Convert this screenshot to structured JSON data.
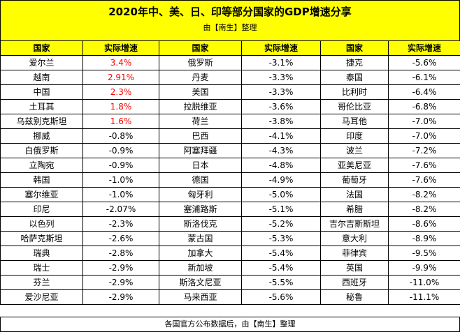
{
  "title": "2020年中、美、日、印等部分国家的GDP增速分享",
  "subtitle": "由【南生】整理",
  "footer": "各国官方公布数据后，由【南生】整理",
  "colors": {
    "header_bg": "#ffff00",
    "highlight_text": "#ff0000"
  },
  "headers": [
    "国家",
    "实际增速",
    "国家",
    "实际增速",
    "国家",
    "实际增速"
  ],
  "rows": [
    [
      {
        "c": "爱尔兰",
        "g": "3.4%",
        "hl": true
      },
      {
        "c": "俄罗斯",
        "g": "-3.1%"
      },
      {
        "c": "捷克",
        "g": "-5.6%"
      }
    ],
    [
      {
        "c": "越南",
        "g": "2.91%",
        "hl": true
      },
      {
        "c": "丹麦",
        "g": "-3.3%"
      },
      {
        "c": "泰国",
        "g": "-6.1%"
      }
    ],
    [
      {
        "c": "中国",
        "g": "2.3%",
        "hl": true
      },
      {
        "c": "美国",
        "g": "-3.3%"
      },
      {
        "c": "比利时",
        "g": "-6.4%"
      }
    ],
    [
      {
        "c": "土耳其",
        "g": "1.8%",
        "hl": true
      },
      {
        "c": "拉脱维亚",
        "g": "-3.6%"
      },
      {
        "c": "哥伦比亚",
        "g": "-6.8%"
      }
    ],
    [
      {
        "c": "乌兹别克斯坦",
        "g": "1.6%",
        "hl": true
      },
      {
        "c": "荷兰",
        "g": "-3.8%"
      },
      {
        "c": "马耳他",
        "g": "-7.0%"
      }
    ],
    [
      {
        "c": "挪威",
        "g": "-0.8%"
      },
      {
        "c": "巴西",
        "g": "-4.1%"
      },
      {
        "c": "印度",
        "g": "-7.0%"
      }
    ],
    [
      {
        "c": "白俄罗斯",
        "g": "-0.9%"
      },
      {
        "c": "阿塞拜疆",
        "g": "-4.3%"
      },
      {
        "c": "波兰",
        "g": "-7.2%"
      }
    ],
    [
      {
        "c": "立陶宛",
        "g": "-0.9%"
      },
      {
        "c": "日本",
        "g": "-4.8%"
      },
      {
        "c": "亚美尼亚",
        "g": "-7.6%"
      }
    ],
    [
      {
        "c": "韩国",
        "g": "-1.0%"
      },
      {
        "c": "德国",
        "g": "-4.9%"
      },
      {
        "c": "葡萄牙",
        "g": "-7.6%"
      }
    ],
    [
      {
        "c": "塞尔维亚",
        "g": "-1.0%"
      },
      {
        "c": "匈牙利",
        "g": "-5.0%"
      },
      {
        "c": "法国",
        "g": "-8.2%"
      }
    ],
    [
      {
        "c": "印尼",
        "g": "-2.07%"
      },
      {
        "c": "塞浦路斯",
        "g": "-5.1%"
      },
      {
        "c": "希腊",
        "g": "-8.2%"
      }
    ],
    [
      {
        "c": "以色列",
        "g": "-2.3%"
      },
      {
        "c": "斯洛伐克",
        "g": "-5.2%"
      },
      {
        "c": "吉尔吉斯斯坦",
        "g": "-8.6%"
      }
    ],
    [
      {
        "c": "哈萨克斯坦",
        "g": "-2.6%"
      },
      {
        "c": "蒙古国",
        "g": "-5.3%"
      },
      {
        "c": "意大利",
        "g": "-8.9%"
      }
    ],
    [
      {
        "c": "瑞典",
        "g": "-2.8%"
      },
      {
        "c": "加拿大",
        "g": "-5.4%"
      },
      {
        "c": "菲律宾",
        "g": "-9.5%"
      }
    ],
    [
      {
        "c": "瑞士",
        "g": "-2.9%"
      },
      {
        "c": "新加坡",
        "g": "-5.4%"
      },
      {
        "c": "英国",
        "g": "-9.9%"
      }
    ],
    [
      {
        "c": "芬兰",
        "g": "-2.9%"
      },
      {
        "c": "斯洛文尼亚",
        "g": "-5.5%"
      },
      {
        "c": "西班牙",
        "g": "-11.0%"
      }
    ],
    [
      {
        "c": "爱沙尼亚",
        "g": "-2.9%"
      },
      {
        "c": "马来西亚",
        "g": "-5.6%"
      },
      {
        "c": "秘鲁",
        "g": "-11.1%"
      }
    ]
  ]
}
